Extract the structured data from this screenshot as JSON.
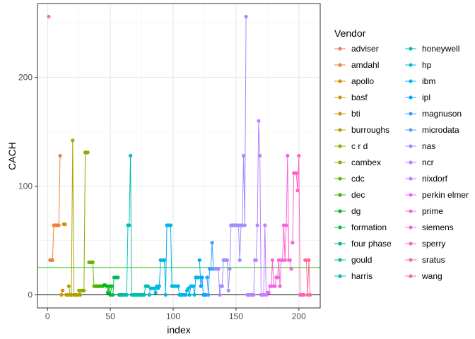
{
  "chart_data": {
    "type": "line",
    "xlabel": "index",
    "ylabel": "CACH",
    "xlim": [
      -8,
      217
    ],
    "ylim": [
      -12,
      268
    ],
    "xticks": [
      0,
      50,
      100,
      150,
      200
    ],
    "yticks": [
      0,
      100,
      200
    ],
    "grid": true,
    "legend": {
      "title": "Vendor",
      "placement": "right"
    },
    "hlines": [
      {
        "y": 0,
        "color": "#000000"
      },
      {
        "y": 25.2,
        "color": "#33cc33"
      }
    ],
    "series": [
      {
        "name": "adviser",
        "color": "#F8766D",
        "x": [
          1
        ],
        "y": [
          256
        ]
      },
      {
        "name": "amdahl",
        "color": "#EC8239",
        "x": [
          2,
          3,
          4,
          5,
          6,
          7,
          8,
          9,
          10
        ],
        "y": [
          32,
          32,
          32,
          64,
          64,
          64,
          64,
          64,
          128
        ]
      },
      {
        "name": "apollo",
        "color": "#DB8E00",
        "x": [
          11,
          12
        ],
        "y": [
          0,
          4
        ]
      },
      {
        "name": "basf",
        "color": "#D09400",
        "x": [
          13,
          14
        ],
        "y": [
          65,
          65
        ]
      },
      {
        "name": "bti",
        "color": "#C39800",
        "x": [
          15,
          16
        ],
        "y": [
          0,
          0
        ]
      },
      {
        "name": "burroughs",
        "color": "#AEA200",
        "x": [
          17,
          18,
          19,
          20,
          21,
          22,
          23,
          24
        ],
        "y": [
          8,
          0,
          0,
          142,
          0,
          0,
          0,
          0
        ]
      },
      {
        "name": "c r d",
        "color": "#A3A500",
        "x": [
          25,
          26,
          27
        ],
        "y": [
          4,
          0,
          4
        ]
      },
      {
        "name": "cambex",
        "color": "#8BAB00",
        "x": [
          28,
          29,
          30,
          31,
          32
        ],
        "y": [
          4,
          4,
          131,
          131,
          131
        ]
      },
      {
        "name": "cdc",
        "color": "#6BB100",
        "x": [
          33,
          34,
          35,
          36,
          37,
          38
        ],
        "y": [
          30,
          30,
          30,
          30,
          8,
          8
        ]
      },
      {
        "name": "dec",
        "color": "#39B600",
        "x": [
          39,
          40,
          41,
          42,
          43,
          44
        ],
        "y": [
          8,
          8,
          8,
          8,
          8,
          8
        ]
      },
      {
        "name": "dg",
        "color": "#00B81F",
        "x": [
          45,
          46,
          47,
          48,
          49,
          50,
          51
        ],
        "y": [
          9,
          9,
          8,
          2,
          8,
          0,
          8
        ]
      },
      {
        "name": "formation",
        "color": "#00BB4E",
        "x": [
          52,
          53,
          54,
          55,
          56
        ],
        "y": [
          0,
          16,
          16,
          16,
          16
        ]
      },
      {
        "name": "four phase",
        "color": "#00BE70",
        "x": [
          57
        ],
        "y": [
          0
        ]
      },
      {
        "name": "gould",
        "color": "#00C08B",
        "x": [
          58,
          59,
          60
        ],
        "y": [
          0,
          0,
          0
        ]
      },
      {
        "name": "harris",
        "color": "#00C0AF",
        "x": [
          61,
          62,
          63,
          64,
          65,
          66,
          67
        ],
        "y": [
          0,
          0,
          0,
          64,
          64,
          128,
          0
        ]
      },
      {
        "name": "honeywell",
        "color": "#00C1A9",
        "x": [
          68,
          69,
          70,
          71,
          72,
          73,
          74,
          75,
          76,
          77,
          78,
          79,
          80
        ],
        "y": [
          0,
          0,
          0,
          0,
          0,
          0,
          0,
          0,
          0,
          0,
          8,
          8,
          8
        ]
      },
      {
        "name": "hp",
        "color": "#00BCD8",
        "x": [
          81,
          82,
          83,
          84,
          85,
          86,
          87
        ],
        "y": [
          0,
          6,
          6,
          6,
          6,
          2,
          8
        ]
      },
      {
        "name": "ibm",
        "color": "#00B6EB",
        "x": [
          88,
          89,
          90,
          91,
          92,
          93,
          94,
          95,
          96,
          97,
          98,
          99,
          100,
          101,
          102,
          103,
          104,
          105,
          106,
          107,
          108,
          109,
          110,
          111,
          112,
          113,
          114,
          115,
          116,
          117,
          118,
          119,
          120
        ],
        "y": [
          6,
          8,
          32,
          32,
          32,
          32,
          0,
          64,
          64,
          64,
          64,
          8,
          8,
          8,
          8,
          8,
          8,
          0,
          0,
          0,
          0,
          0,
          0,
          4,
          6,
          0,
          8,
          8,
          8,
          0,
          16,
          16,
          16
        ]
      },
      {
        "name": "ipl",
        "color": "#06A4FF",
        "x": [
          121,
          122,
          123,
          124,
          125,
          126
        ],
        "y": [
          32,
          8,
          16,
          0,
          0,
          0
        ]
      },
      {
        "name": "magnuson",
        "color": "#35A2FF",
        "x": [
          127,
          128,
          129,
          130,
          131,
          132
        ],
        "y": [
          16,
          0,
          24,
          24,
          48,
          24
        ]
      },
      {
        "name": "microdata",
        "color": "#619CFF",
        "x": [
          133
        ],
        "y": [
          24
        ]
      },
      {
        "name": "nas",
        "color": "#A58AFF",
        "x": [
          134,
          135,
          136,
          137,
          138,
          139,
          140,
          141,
          142,
          143,
          144,
          145,
          146,
          147,
          148,
          149,
          150,
          151,
          152,
          153,
          154,
          155,
          156,
          157,
          158
        ],
        "y": [
          24,
          24,
          24,
          0,
          8,
          8,
          32,
          32,
          32,
          32,
          4,
          24,
          64,
          64,
          64,
          64,
          64,
          64,
          64,
          32,
          64,
          64,
          128,
          64,
          256
        ]
      },
      {
        "name": "ncr",
        "color": "#B983FF",
        "x": [
          159,
          160,
          161,
          162,
          163,
          164,
          165,
          166,
          167,
          168,
          169,
          170,
          171
        ],
        "y": [
          0,
          0,
          0,
          0,
          0,
          0,
          32,
          32,
          64,
          160,
          128,
          0,
          0
        ]
      },
      {
        "name": "nixdorf",
        "color": "#C77CFF",
        "x": [
          172,
          173,
          174
        ],
        "y": [
          0,
          64,
          0
        ]
      },
      {
        "name": "perkin elmer",
        "color": "#E76BF3",
        "x": [
          175,
          176,
          177
        ],
        "y": [
          2,
          2,
          8
        ]
      },
      {
        "name": "prime",
        "color": "#F564E3",
        "x": [
          178,
          179,
          180,
          181,
          182
        ],
        "y": [
          8,
          32,
          8,
          8,
          16
        ]
      },
      {
        "name": "siemens",
        "color": "#FA62DB",
        "x": [
          183,
          184,
          185,
          186,
          187,
          188,
          189,
          190,
          191,
          192,
          193,
          194
        ],
        "y": [
          16,
          32,
          8,
          32,
          32,
          64,
          32,
          64,
          128,
          32,
          32,
          24
        ]
      },
      {
        "name": "sperry",
        "color": "#FF61C3",
        "x": [
          195,
          196,
          197,
          198,
          199,
          200,
          201,
          202,
          203
        ],
        "y": [
          48,
          112,
          112,
          112,
          96,
          128,
          0,
          0,
          0
        ]
      },
      {
        "name": "sratus",
        "color": "#FF66A8",
        "x": [
          204
        ],
        "y": [
          0
        ]
      },
      {
        "name": "wang",
        "color": "#FF6C91",
        "x": [
          205,
          206,
          207,
          208,
          209
        ],
        "y": [
          32,
          32,
          0,
          32,
          0
        ]
      }
    ]
  }
}
